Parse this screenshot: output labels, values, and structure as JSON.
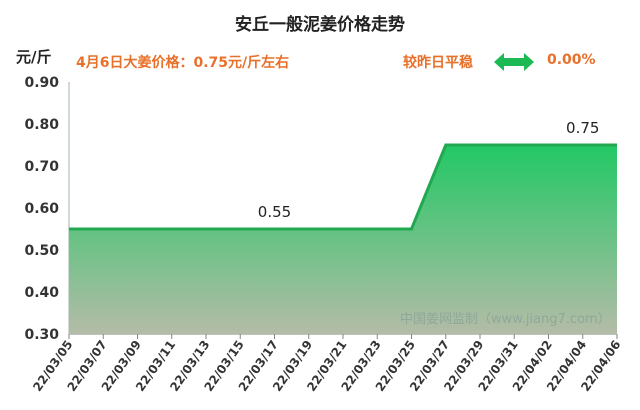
{
  "header": {
    "title": "安丘一般泥姜价格走势",
    "unit": "元/斤",
    "price_note": "4月6日大姜价格：0.75元/斤左右",
    "compare_label": "较昨日平稳",
    "compare_value": "0.00%",
    "compare_icon": "double-arrow-icon"
  },
  "watermark": "中国姜网监制（www.jiang7.com）",
  "colors": {
    "accent_orange": "#e8702a",
    "line_green": "#21a851",
    "fill_top": "#22c865",
    "fill_bottom": "#b4bca7",
    "arrow_green": "#1db954"
  },
  "chart_data": {
    "type": "area",
    "title": "安丘一般泥姜价格走势",
    "ylabel": "元/斤",
    "xlabel": "",
    "ylim": [
      0.3,
      0.9
    ],
    "yticks": [
      "0.30",
      "0.40",
      "0.50",
      "0.60",
      "0.70",
      "0.80",
      "0.90"
    ],
    "x_range": [
      "22/03/05",
      "22/04/06"
    ],
    "xticks": [
      "22/03/05",
      "22/03/07",
      "22/03/09",
      "22/03/11",
      "22/03/13",
      "22/03/15",
      "22/03/17",
      "22/03/19",
      "22/03/21",
      "22/03/23",
      "22/03/25",
      "22/03/27",
      "22/03/29",
      "22/03/31",
      "22/04/02",
      "22/04/04",
      "22/04/06"
    ],
    "series": [
      {
        "points": [
          {
            "x": "22/03/05",
            "y": 0.55
          },
          {
            "x": "22/03/25",
            "y": 0.55
          },
          {
            "x": "22/03/27",
            "y": 0.75
          },
          {
            "x": "22/04/06",
            "y": 0.75
          }
        ]
      }
    ],
    "data_labels": [
      {
        "x": "22/03/17",
        "y": 0.55,
        "text": "0.55"
      },
      {
        "x": "22/04/04",
        "y": 0.75,
        "text": "0.75"
      }
    ],
    "grid": false
  }
}
